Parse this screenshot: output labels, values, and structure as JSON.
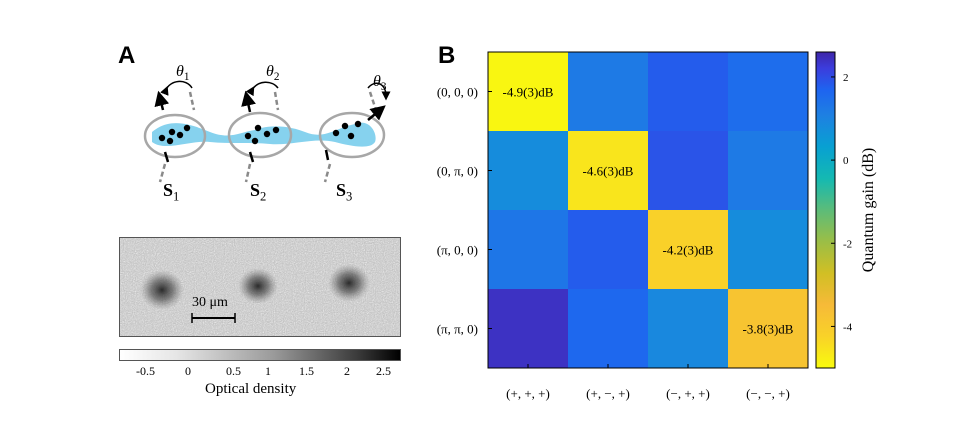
{
  "panel_a": {
    "label": "A",
    "theta_labels": [
      "θ1",
      "θ2",
      "θ3"
    ],
    "s_labels": [
      "S1",
      "S2",
      "S3"
    ],
    "scale_bar_label": "30 μm",
    "od_colorbar": {
      "ticks": [
        "-0.5",
        "0",
        "0.5",
        "1",
        "1.5",
        "2",
        "2.5"
      ],
      "label": "Optical density"
    }
  },
  "panel_b": {
    "label": "B",
    "colorbar": {
      "label": "Quantum gain (dB)",
      "ticks": [
        "2",
        "0",
        "-2",
        "-4"
      ],
      "tick_values": [
        2,
        0,
        -2,
        -4
      ],
      "range": [
        -5,
        2.6
      ]
    }
  },
  "chart_data": {
    "type": "heatmap",
    "title": "",
    "xlabel": "",
    "ylabel": "",
    "row_labels": [
      "(0, 0, 0)",
      "(0, π, 0)",
      "(π, 0, 0)",
      "(π, π, 0)"
    ],
    "column_labels": [
      "(+, +, +)",
      "(+, −, +)",
      "(−, +, +)",
      "(−, −, +)"
    ],
    "values": [
      [
        -4.9,
        1.2,
        1.8,
        1.5
      ],
      [
        0.8,
        -4.6,
        1.9,
        1.2
      ],
      [
        1.3,
        1.8,
        -4.2,
        0.8
      ],
      [
        2.4,
        1.6,
        0.9,
        -3.8
      ]
    ],
    "annotations": [
      "-4.9(3)dB",
      "-4.6(3)dB",
      "-4.2(3)dB",
      "-3.8(3)dB"
    ],
    "colorscale": "parula",
    "zlim": [
      -5,
      2.6
    ]
  }
}
